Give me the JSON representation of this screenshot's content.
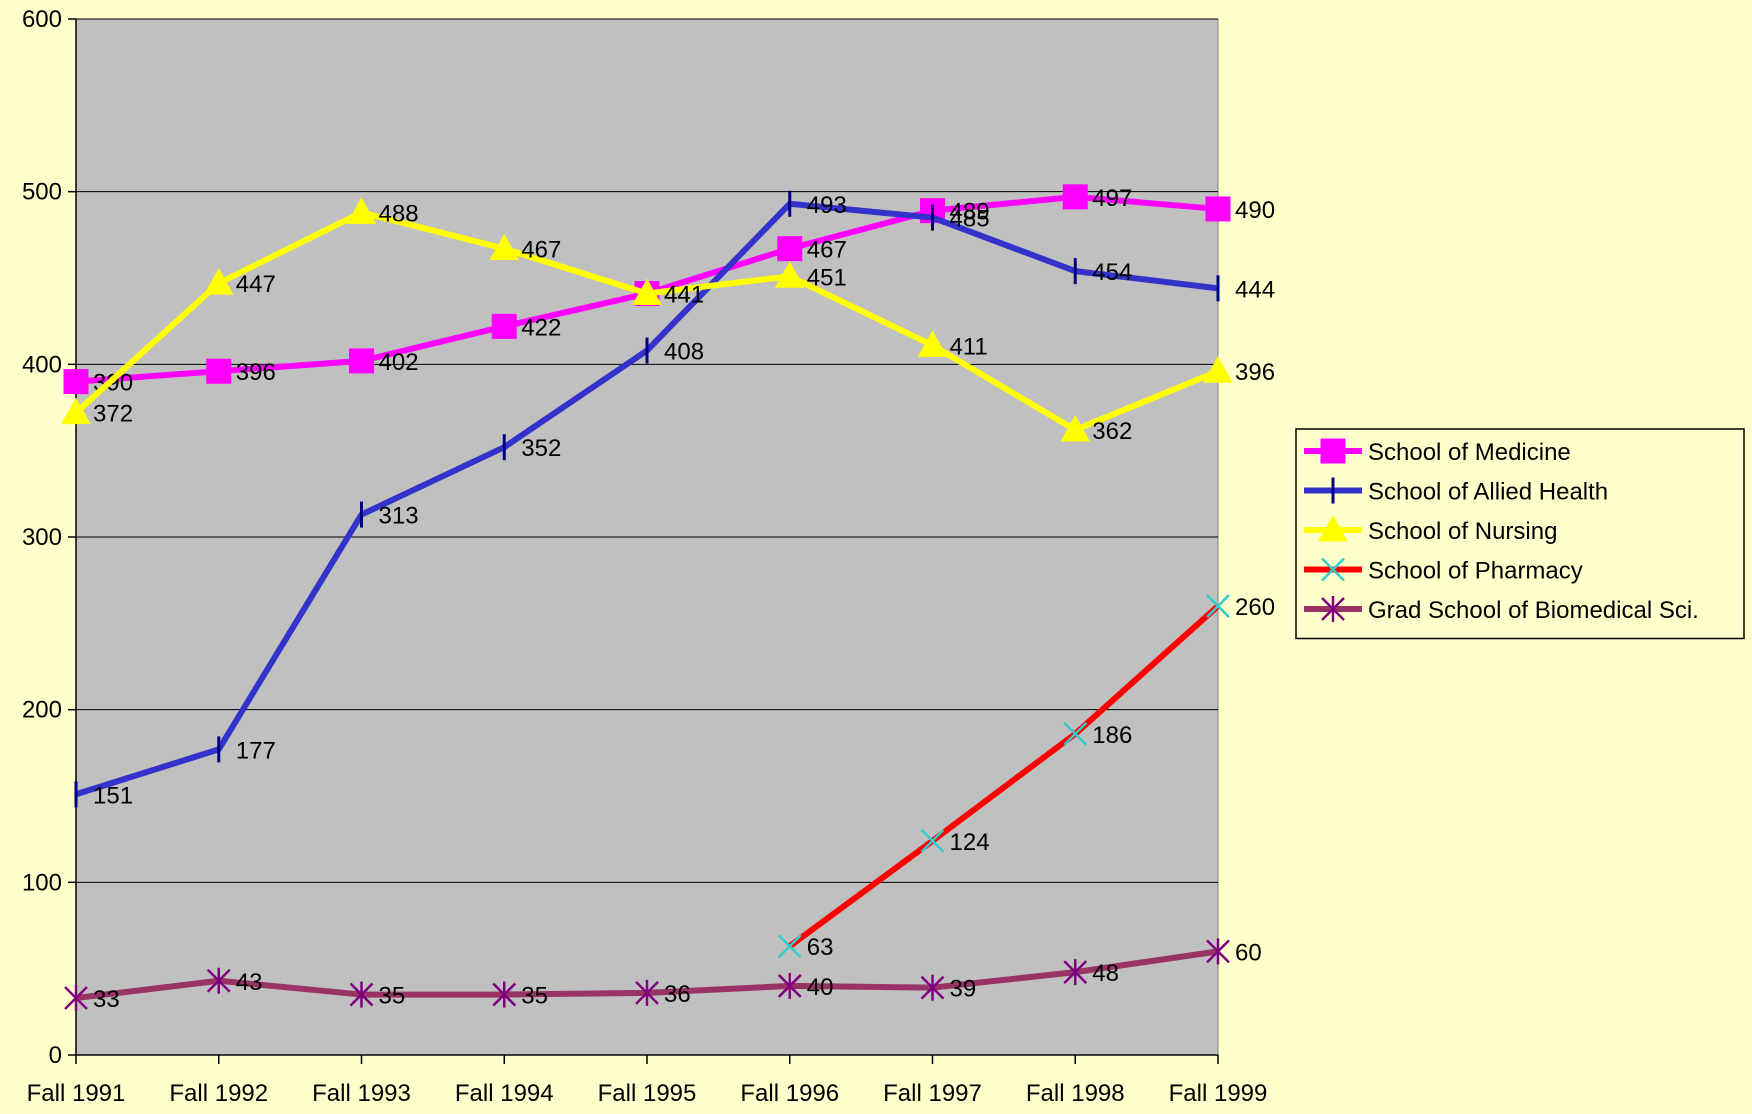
{
  "chart_data": {
    "type": "line",
    "categories": [
      "Fall 1991",
      "Fall 1992",
      "Fall 1993",
      "Fall 1994",
      "Fall 1995",
      "Fall 1996",
      "Fall 1997",
      "Fall 1998",
      "Fall 1999"
    ],
    "ylim": [
      0,
      600
    ],
    "yticks": [
      0,
      100,
      200,
      300,
      400,
      500,
      600
    ],
    "ytick_labels": [
      "0",
      "100",
      "200",
      "300",
      "400",
      "500",
      "600"
    ],
    "grid": true,
    "plot_background": "#c0c0c0",
    "page_background": "#ffffcc",
    "legend_position": "right",
    "series": [
      {
        "name": "School of Medicine",
        "color": "#ff00ff",
        "marker": "square",
        "marker_color": "#ff00ff",
        "values": [
          390,
          396,
          402,
          422,
          441,
          467,
          489,
          497,
          490
        ],
        "labels": [
          "390",
          "396",
          "402",
          "422",
          "441",
          "467",
          "489",
          "497",
          "490"
        ]
      },
      {
        "name": "School of Allied Health",
        "color": "#3333cc",
        "marker": "dash",
        "marker_color": "#000080",
        "values": [
          151,
          177,
          313,
          352,
          408,
          493,
          485,
          454,
          444
        ],
        "labels": [
          "151",
          "177",
          "313",
          "352",
          "408",
          "493",
          "485",
          "454",
          "444"
        ]
      },
      {
        "name": "School of Nursing",
        "color": "#ffff00",
        "marker": "triangle",
        "marker_color": "#ffff00",
        "values": [
          372,
          447,
          488,
          467,
          441,
          451,
          411,
          362,
          396
        ],
        "labels": [
          "372",
          "447",
          "488",
          "467",
          "441",
          "451",
          "411",
          "362",
          "396"
        ]
      },
      {
        "name": "School of Pharmacy",
        "color": "#ff0000",
        "marker": "x",
        "marker_color": "#33cccc",
        "values": [
          null,
          null,
          null,
          null,
          null,
          63,
          124,
          186,
          260
        ],
        "labels": [
          "",
          "",
          "",
          "",
          "",
          "63",
          "124",
          "186",
          "260"
        ]
      },
      {
        "name": "Grad School of Biomedical Sci.",
        "color": "#993366",
        "marker": "star",
        "marker_color": "#800080",
        "values": [
          33,
          43,
          35,
          35,
          36,
          40,
          39,
          48,
          60
        ],
        "labels": [
          "33",
          "43",
          "35",
          "35",
          "36",
          "40",
          "39",
          "48",
          "60"
        ]
      }
    ]
  }
}
